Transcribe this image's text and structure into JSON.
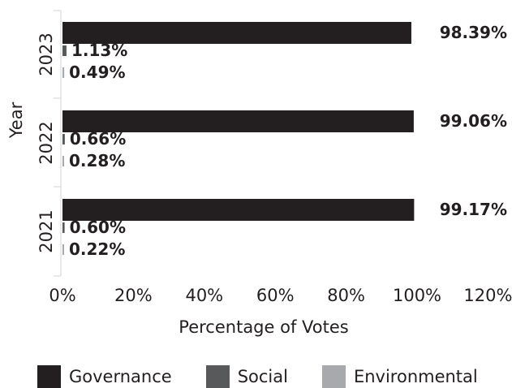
{
  "chart_data": {
    "type": "bar",
    "orientation": "horizontal",
    "categories": [
      "2023",
      "2022",
      "2021"
    ],
    "series": [
      {
        "name": "Governance",
        "color": "#231f20",
        "values": [
          98.39,
          99.06,
          99.17
        ],
        "labels": [
          "98.39%",
          "99.06%",
          "99.17%"
        ]
      },
      {
        "name": "Social",
        "color": "#58595b",
        "values": [
          1.13,
          0.66,
          0.6
        ],
        "labels": [
          "1.13%",
          "0.66%",
          "0.60%"
        ]
      },
      {
        "name": "Environmental",
        "color": "#a7a9ac",
        "values": [
          0.49,
          0.28,
          0.22
        ],
        "labels": [
          "0.49%",
          "0.28%",
          "0.22%"
        ]
      }
    ],
    "xlabel": "Percentage of Votes",
    "ylabel": "Year",
    "xlim": [
      0,
      120
    ],
    "xticks": [
      "0%",
      "20%",
      "40%",
      "60%",
      "80%",
      "100%",
      "120%"
    ],
    "grid": false,
    "legend_position": "bottom"
  }
}
